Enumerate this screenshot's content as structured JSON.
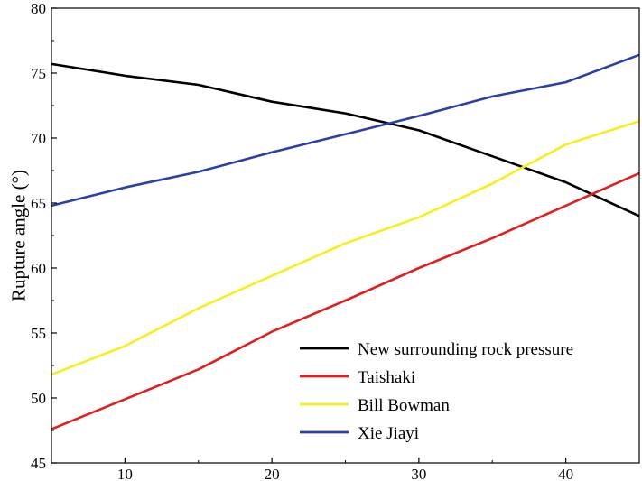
{
  "chart_data": {
    "type": "line",
    "title": "",
    "xlabel": "",
    "ylabel": "Rupture angle (°)",
    "xlim": [
      5,
      45
    ],
    "ylim": [
      45,
      80
    ],
    "xticks": [
      10,
      20,
      30,
      40
    ],
    "yticks": [
      45,
      50,
      55,
      60,
      65,
      70,
      75,
      80
    ],
    "grid": false,
    "legend_position": "bottom-right",
    "series": [
      {
        "name": "New surrounding rock pressure",
        "color": "#000000",
        "x": [
          5,
          10,
          15,
          20,
          25,
          30,
          35,
          40,
          45
        ],
        "y": [
          75.7,
          74.8,
          74.1,
          72.8,
          71.9,
          70.6,
          68.6,
          66.6,
          64.0
        ]
      },
      {
        "name": "Taishaki",
        "color": "#e02020",
        "x": [
          5,
          10,
          15,
          20,
          25,
          30,
          35,
          40,
          45
        ],
        "y": [
          47.6,
          49.9,
          52.2,
          55.1,
          57.5,
          60.0,
          62.3,
          64.8,
          67.3
        ]
      },
      {
        "name": "Bill Bowman",
        "color": "#f5ef1e",
        "x": [
          5,
          10,
          15,
          20,
          25,
          30,
          35,
          40,
          45
        ],
        "y": [
          51.8,
          54.0,
          56.9,
          59.4,
          61.9,
          63.9,
          66.5,
          69.5,
          71.3
        ]
      },
      {
        "name": "Xie Jiayi",
        "color": "#2b3fa6",
        "x": [
          5,
          10,
          15,
          20,
          25,
          30,
          35,
          40,
          45
        ],
        "y": [
          64.8,
          66.2,
          67.4,
          68.9,
          70.3,
          71.7,
          73.2,
          74.3,
          76.4
        ]
      }
    ]
  }
}
